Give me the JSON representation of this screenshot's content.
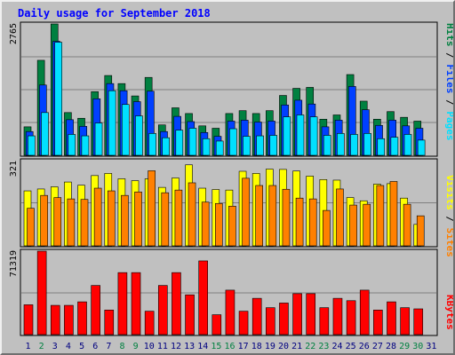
{
  "title": "Daily usage for September 2018",
  "days": [
    "1",
    "2",
    "3",
    "4",
    "5",
    "6",
    "7",
    "8",
    "9",
    "10",
    "11",
    "12",
    "13",
    "14",
    "15",
    "16",
    "17",
    "18",
    "19",
    "20",
    "21",
    "22",
    "23",
    "24",
    "25",
    "26",
    "27",
    "28",
    "29",
    "30",
    "31"
  ],
  "weekend_days": [
    "2",
    "8",
    "9",
    "15",
    "16",
    "22",
    "23",
    "29",
    "30"
  ],
  "colors": {
    "hits": "#008040",
    "files": "#0040ff",
    "pages": "#00e0ff",
    "visits": "#ffff00",
    "sites": "#ff8000",
    "kbytes": "#ff0000",
    "weekday_label": "#000080",
    "weekend_label": "#008040",
    "grid": "#808080",
    "panel": "#c0c0c0"
  },
  "panel1": {
    "ymax": "2765",
    "legend": {
      "pages": "Pages",
      "files": "Files",
      "hits": "Hits",
      "sep": " / "
    }
  },
  "panel2": {
    "ymax": "321",
    "legend": {
      "sites": "Sites",
      "visits": "Visits",
      "sep": " / "
    }
  },
  "panel3": {
    "ymax": "71319",
    "legend": {
      "kbytes": "KBytes"
    }
  },
  "chart_data": [
    {
      "type": "bar",
      "title": "Daily usage for September 2018",
      "categories": [
        "1",
        "2",
        "3",
        "4",
        "5",
        "6",
        "7",
        "8",
        "9",
        "10",
        "11",
        "12",
        "13",
        "14",
        "15",
        "16",
        "17",
        "18",
        "19",
        "20",
        "21",
        "22",
        "23",
        "24",
        "25",
        "26",
        "27",
        "28",
        "29",
        "30",
        "31"
      ],
      "ylim": [
        0,
        2765
      ],
      "series": [
        {
          "name": "Hits",
          "values": [
            600,
            2000,
            2765,
            900,
            780,
            1340,
            1680,
            1510,
            1250,
            1640,
            640,
            1000,
            880,
            620,
            570,
            880,
            940,
            880,
            940,
            1260,
            1410,
            1430,
            760,
            850,
            1700,
            1140,
            760,
            920,
            800,
            720,
            0
          ]
        },
        {
          "name": "Files",
          "values": [
            500,
            1480,
            2400,
            750,
            610,
            1190,
            1510,
            1360,
            1130,
            1350,
            500,
            820,
            710,
            480,
            400,
            720,
            740,
            700,
            720,
            1060,
            1160,
            1080,
            600,
            740,
            1450,
            960,
            630,
            740,
            620,
            570,
            0
          ]
        },
        {
          "name": "Pages",
          "values": [
            410,
            900,
            2380,
            440,
            410,
            680,
            1360,
            1070,
            830,
            460,
            370,
            530,
            570,
            350,
            300,
            560,
            400,
            410,
            420,
            810,
            850,
            810,
            420,
            460,
            440,
            460,
            350,
            380,
            440,
            320,
            0
          ]
        }
      ]
    },
    {
      "type": "bar",
      "categories": [
        "1",
        "2",
        "3",
        "4",
        "5",
        "6",
        "7",
        "8",
        "9",
        "10",
        "11",
        "12",
        "13",
        "14",
        "15",
        "16",
        "17",
        "18",
        "19",
        "20",
        "21",
        "22",
        "23",
        "24",
        "25",
        "26",
        "27",
        "28",
        "29",
        "30",
        "31"
      ],
      "ylim": [
        0,
        321
      ],
      "series": [
        {
          "name": "Visits",
          "values": [
            205,
            212,
            220,
            238,
            226,
            262,
            270,
            250,
            243,
            250,
            218,
            253,
            302,
            215,
            210,
            208,
            278,
            270,
            286,
            285,
            279,
            260,
            247,
            245,
            180,
            168,
            230,
            232,
            178,
            80,
            0
          ]
        },
        {
          "name": "Sites",
          "values": [
            140,
            188,
            180,
            175,
            173,
            215,
            205,
            188,
            201,
            280,
            198,
            208,
            235,
            163,
            158,
            148,
            252,
            225,
            225,
            211,
            178,
            175,
            132,
            212,
            152,
            155,
            225,
            240,
            155,
            112,
            0
          ]
        }
      ]
    },
    {
      "type": "bar",
      "categories": [
        "1",
        "2",
        "3",
        "4",
        "5",
        "6",
        "7",
        "8",
        "9",
        "10",
        "11",
        "12",
        "13",
        "14",
        "15",
        "16",
        "17",
        "18",
        "19",
        "20",
        "21",
        "22",
        "23",
        "24",
        "25",
        "26",
        "27",
        "28",
        "29",
        "30",
        "31"
      ],
      "ylim": [
        0,
        71319
      ],
      "series": [
        {
          "name": "KBytes",
          "values": [
            25500,
            71319,
            25000,
            25000,
            28000,
            42000,
            21000,
            53000,
            53000,
            20000,
            42000,
            53000,
            34000,
            63000,
            17000,
            38000,
            20000,
            31000,
            23000,
            27000,
            35000,
            35000,
            23000,
            31000,
            29000,
            38000,
            21000,
            28000,
            23000,
            22000,
            0
          ]
        }
      ]
    }
  ]
}
